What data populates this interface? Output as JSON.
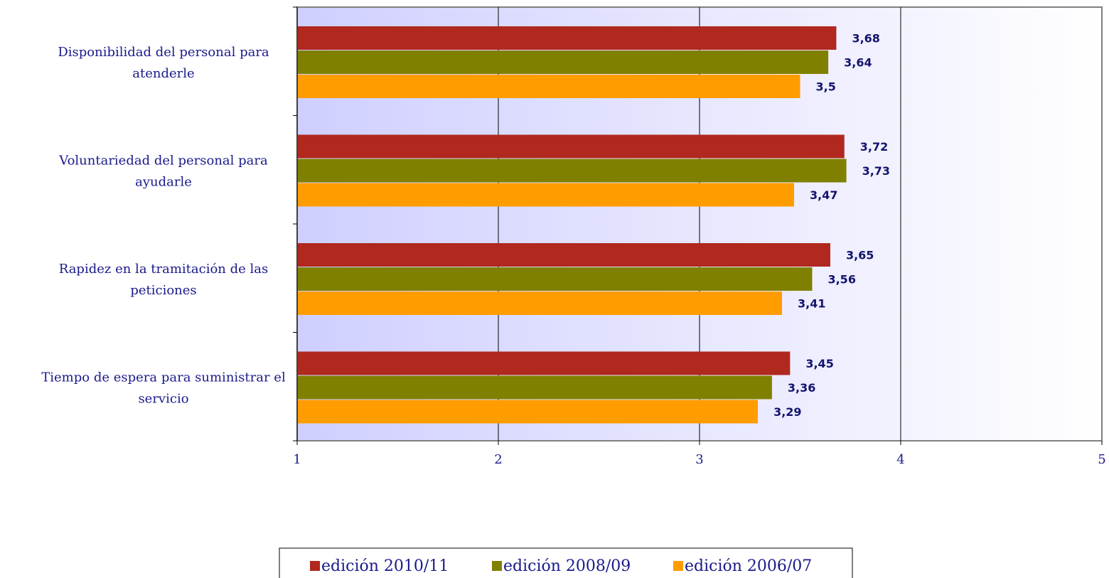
{
  "chart_data": {
    "type": "bar",
    "orientation": "horizontal",
    "categories": [
      [
        "Disponibilidad del personal para",
        "atenderle"
      ],
      [
        "Voluntariedad del personal para",
        "ayudarle"
      ],
      [
        "Rapidez en la tramitación de las",
        "peticiones"
      ],
      [
        "Tiempo de espera para suministrar el",
        "servicio"
      ]
    ],
    "series": [
      {
        "name": "edición 2010/11",
        "color": "#B0281E",
        "values": [
          3.68,
          3.72,
          3.65,
          3.45
        ],
        "labels": [
          "3,68",
          "3,72",
          "3,65",
          "3,45"
        ]
      },
      {
        "name": "edición 2008/09",
        "color": "#808000",
        "values": [
          3.64,
          3.73,
          3.56,
          3.36
        ],
        "labels": [
          "3,64",
          "3,73",
          "3,56",
          "3,36"
        ]
      },
      {
        "name": "edición 2006/07",
        "color": "#FF9C00",
        "values": [
          3.5,
          3.47,
          3.41,
          3.29
        ],
        "labels": [
          "3,5",
          "3,47",
          "3,41",
          "3,29"
        ]
      }
    ],
    "xlim": [
      1,
      5
    ],
    "xticks": [
      "1",
      "2",
      "3",
      "4",
      "5"
    ],
    "grid": true,
    "legend_position": "bottom",
    "plot_background": "lavender-gradient"
  }
}
